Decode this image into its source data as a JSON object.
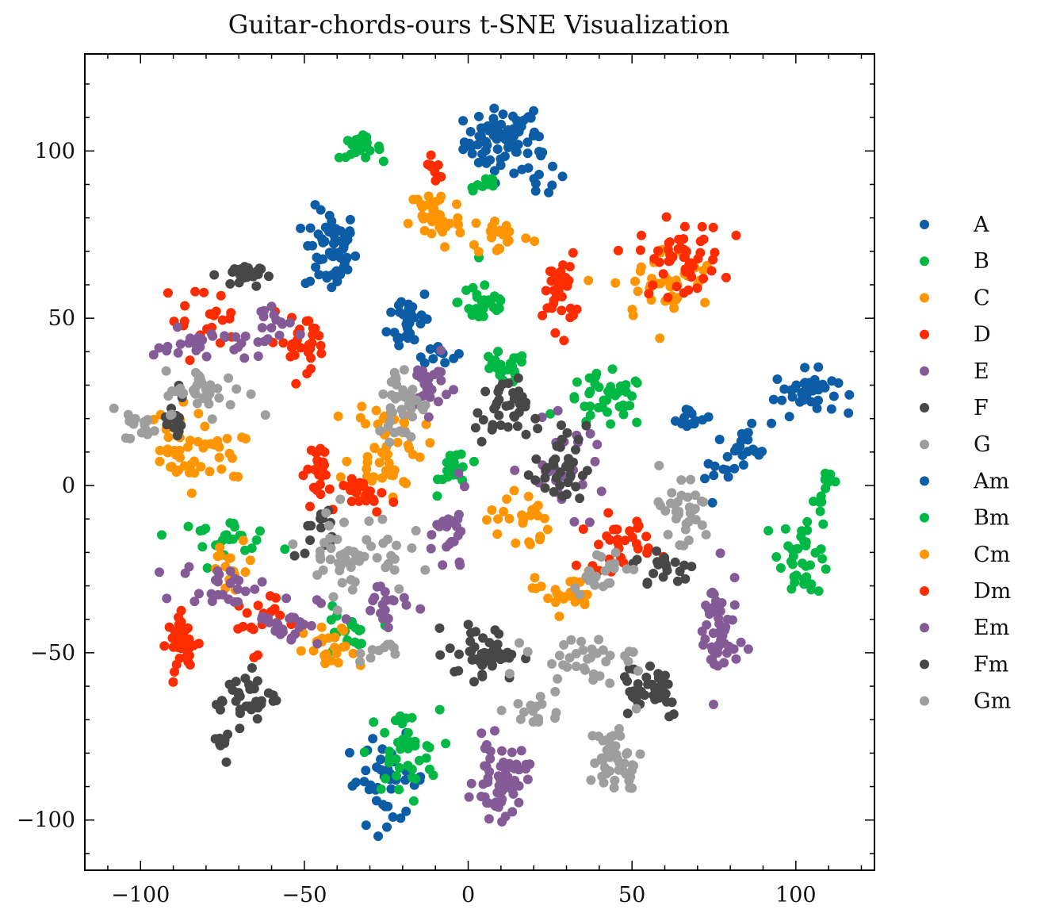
{
  "chart_data": {
    "type": "scatter",
    "title": "Guitar-chords-ours t-SNE Visualization",
    "xlabel": "",
    "ylabel": "",
    "xlim": [
      -117,
      124
    ],
    "ylim": [
      -115,
      129
    ],
    "xticks": [
      -100,
      -50,
      0,
      50,
      100
    ],
    "yticks": [
      -100,
      -50,
      0,
      50,
      100
    ],
    "xtick_labels": [
      "−100",
      "−50",
      "0",
      "50",
      "100"
    ],
    "ytick_labels": [
      "−100",
      "−50",
      "0",
      "50",
      "100"
    ],
    "grid": false,
    "legend_position": "right-outside",
    "series": [
      {
        "name": "A",
        "color": "#0C5DA5",
        "clusters": [
          {
            "cx": 10,
            "cy": 103,
            "sx": 7,
            "sy": 6,
            "n": 70
          },
          {
            "cx": 22,
            "cy": 96,
            "sx": 4,
            "sy": 8,
            "n": 15
          },
          {
            "cx": -42,
            "cy": 70,
            "sx": 5,
            "sy": 8,
            "n": 60
          },
          {
            "cx": -18,
            "cy": 50,
            "sx": 4,
            "sy": 6,
            "n": 30
          },
          {
            "cx": -10,
            "cy": 40,
            "sx": 4,
            "sy": 2,
            "n": 12
          },
          {
            "cx": 103,
            "cy": 28,
            "sx": 6,
            "sy": 4,
            "n": 40
          },
          {
            "cx": 86,
            "cy": 13,
            "sx": 4,
            "sy": 4,
            "n": 18
          },
          {
            "cx": 68,
            "cy": 20,
            "sx": 4,
            "sy": 2,
            "n": 12
          },
          {
            "cx": 77,
            "cy": 3,
            "sx": 3,
            "sy": 3,
            "n": 10
          },
          {
            "cx": -25,
            "cy": -88,
            "sx": 8,
            "sy": 8,
            "n": 40
          }
        ]
      },
      {
        "name": "B",
        "color": "#00B945",
        "clusters": [
          {
            "cx": -33,
            "cy": 101,
            "sx": 4,
            "sy": 2,
            "n": 25
          },
          {
            "cx": 5,
            "cy": 90,
            "sx": 3,
            "sy": 2,
            "n": 10
          },
          {
            "cx": 5,
            "cy": 55,
            "sx": 5,
            "sy": 5,
            "n": 30
          },
          {
            "cx": 10,
            "cy": 35,
            "sx": 5,
            "sy": 3,
            "n": 25
          },
          {
            "cx": 42,
            "cy": 25,
            "sx": 8,
            "sy": 5,
            "n": 40
          },
          {
            "cx": -4,
            "cy": 5,
            "sx": 3,
            "sy": 4,
            "n": 20
          },
          {
            "cx": 103,
            "cy": -20,
            "sx": 5,
            "sy": 8,
            "n": 40
          },
          {
            "cx": 110,
            "cy": 0,
            "sx": 2,
            "sy": 3,
            "n": 10
          },
          {
            "cx": -75,
            "cy": -15,
            "sx": 10,
            "sy": 3,
            "n": 25
          },
          {
            "cx": -38,
            "cy": -45,
            "sx": 5,
            "sy": 5,
            "n": 20
          },
          {
            "cx": -20,
            "cy": -80,
            "sx": 7,
            "sy": 8,
            "n": 40
          }
        ]
      },
      {
        "name": "C",
        "color": "#FF9500",
        "clusters": [
          {
            "cx": -10,
            "cy": 80,
            "sx": 5,
            "sy": 6,
            "n": 40
          },
          {
            "cx": 10,
            "cy": 75,
            "sx": 6,
            "sy": 4,
            "n": 20
          },
          {
            "cx": 60,
            "cy": 60,
            "sx": 10,
            "sy": 7,
            "n": 40
          },
          {
            "cx": -25,
            "cy": 12,
            "sx": 7,
            "sy": 10,
            "n": 55
          },
          {
            "cx": -90,
            "cy": 10,
            "sx": 6,
            "sy": 8,
            "n": 35
          },
          {
            "cx": -75,
            "cy": 10,
            "sx": 4,
            "sy": 5,
            "n": 15
          },
          {
            "cx": 15,
            "cy": -10,
            "sx": 6,
            "sy": 6,
            "n": 25
          },
          {
            "cx": 30,
            "cy": -32,
            "sx": 6,
            "sy": 4,
            "n": 30
          },
          {
            "cx": -72,
            "cy": -25,
            "sx": 5,
            "sy": 5,
            "n": 15
          },
          {
            "cx": -42,
            "cy": -50,
            "sx": 5,
            "sy": 5,
            "n": 25
          }
        ]
      },
      {
        "name": "D",
        "color": "#FF2C00",
        "clusters": [
          {
            "cx": -10,
            "cy": 95,
            "sx": 2,
            "sy": 3,
            "n": 8
          },
          {
            "cx": 28,
            "cy": 58,
            "sx": 3,
            "sy": 7,
            "n": 35
          },
          {
            "cx": 65,
            "cy": 68,
            "sx": 8,
            "sy": 7,
            "n": 50
          },
          {
            "cx": -50,
            "cy": 43,
            "sx": 7,
            "sy": 5,
            "n": 30
          },
          {
            "cx": -82,
            "cy": 50,
            "sx": 7,
            "sy": 6,
            "n": 20
          },
          {
            "cx": -45,
            "cy": 5,
            "sx": 3,
            "sy": 5,
            "n": 25
          },
          {
            "cx": -30,
            "cy": -3,
            "sx": 5,
            "sy": 3,
            "n": 25
          },
          {
            "cx": 45,
            "cy": -17,
            "sx": 7,
            "sy": 5,
            "n": 30
          },
          {
            "cx": -87,
            "cy": -47,
            "sx": 3,
            "sy": 5,
            "n": 40
          },
          {
            "cx": -65,
            "cy": -40,
            "sx": 5,
            "sy": 6,
            "n": 20
          }
        ]
      },
      {
        "name": "E",
        "color": "#845B97",
        "clusters": [
          {
            "cx": -80,
            "cy": 42,
            "sx": 10,
            "sy": 3,
            "n": 30
          },
          {
            "cx": -60,
            "cy": 48,
            "sx": 4,
            "sy": 5,
            "n": 15
          },
          {
            "cx": -12,
            "cy": 30,
            "sx": 4,
            "sy": 5,
            "n": 25
          },
          {
            "cx": 30,
            "cy": 5,
            "sx": 8,
            "sy": 8,
            "n": 30
          },
          {
            "cx": -5,
            "cy": -15,
            "sx": 3,
            "sy": 8,
            "n": 25
          },
          {
            "cx": 76,
            "cy": -45,
            "sx": 4,
            "sy": 12,
            "n": 50
          },
          {
            "cx": 10,
            "cy": -88,
            "sx": 5,
            "sy": 7,
            "n": 60
          },
          {
            "cx": -75,
            "cy": -30,
            "sx": 8,
            "sy": 4,
            "n": 25
          },
          {
            "cx": -55,
            "cy": -40,
            "sx": 6,
            "sy": 5,
            "n": 25
          },
          {
            "cx": -25,
            "cy": -35,
            "sx": 6,
            "sy": 4,
            "n": 20
          }
        ]
      },
      {
        "name": "F",
        "color": "#474747",
        "clusters": [
          {
            "cx": -70,
            "cy": 63,
            "sx": 4,
            "sy": 2,
            "n": 25
          },
          {
            "cx": -90,
            "cy": 20,
            "sx": 3,
            "sy": 6,
            "n": 15
          },
          {
            "cx": 10,
            "cy": 22,
            "sx": 5,
            "sy": 6,
            "n": 35
          },
          {
            "cx": 28,
            "cy": 5,
            "sx": 5,
            "sy": 8,
            "n": 35
          },
          {
            "cx": 5,
            "cy": -50,
            "sx": 7,
            "sy": 5,
            "n": 45
          },
          {
            "cx": -45,
            "cy": -15,
            "sx": 3,
            "sy": 5,
            "n": 15
          },
          {
            "cx": -68,
            "cy": -63,
            "sx": 6,
            "sy": 5,
            "n": 35
          },
          {
            "cx": -73,
            "cy": -77,
            "sx": 2,
            "sy": 3,
            "n": 8
          },
          {
            "cx": 55,
            "cy": -60,
            "sx": 7,
            "sy": 6,
            "n": 40
          },
          {
            "cx": 60,
            "cy": -25,
            "sx": 6,
            "sy": 4,
            "n": 20
          }
        ]
      },
      {
        "name": "G",
        "color": "#9E9E9E",
        "clusters": [
          {
            "cx": -80,
            "cy": 28,
            "sx": 8,
            "sy": 4,
            "n": 40
          },
          {
            "cx": -100,
            "cy": 18,
            "sx": 3,
            "sy": 3,
            "n": 15
          },
          {
            "cx": -20,
            "cy": 25,
            "sx": 5,
            "sy": 7,
            "n": 40
          },
          {
            "cx": -35,
            "cy": -20,
            "sx": 10,
            "sy": 8,
            "n": 55
          },
          {
            "cx": 65,
            "cy": -8,
            "sx": 6,
            "sy": 8,
            "n": 35
          },
          {
            "cx": 40,
            "cy": -25,
            "sx": 5,
            "sy": 4,
            "n": 20
          },
          {
            "cx": 35,
            "cy": -52,
            "sx": 10,
            "sy": 4,
            "n": 35
          },
          {
            "cx": 45,
            "cy": -82,
            "sx": 5,
            "sy": 7,
            "n": 45
          },
          {
            "cx": -25,
            "cy": -50,
            "sx": 5,
            "sy": 2,
            "n": 10
          },
          {
            "cx": 20,
            "cy": -68,
            "sx": 5,
            "sy": 3,
            "n": 15
          }
        ]
      }
    ]
  }
}
